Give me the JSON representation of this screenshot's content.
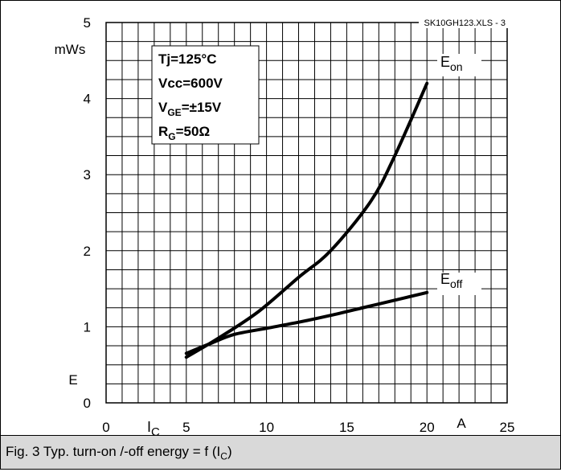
{
  "chart_data": {
    "type": "line",
    "source_label": "SK10GH123.XLS - 3",
    "xlabel": "I",
    "xlabel_sub": "C",
    "xunit": "A",
    "ylabel": "E",
    "yunit": "mWs",
    "xlim": [
      0,
      25
    ],
    "ylim": [
      0,
      5
    ],
    "x_ticks": [
      "0",
      "5",
      "10",
      "15",
      "20",
      "25"
    ],
    "y_ticks": [
      "0",
      "1",
      "2",
      "3",
      "4",
      "5"
    ],
    "grid": true,
    "conditions": [
      {
        "main": "Tj=125°C",
        "sub": "",
        "tail": ""
      },
      {
        "main": "Vcc=600V",
        "sub": "",
        "tail": ""
      },
      {
        "main": "V",
        "sub": "GE",
        "tail": "=±15V"
      },
      {
        "main": "R",
        "sub": "G",
        "tail": "=50Ω"
      }
    ],
    "series": [
      {
        "name": "E",
        "name_sub": "on",
        "x": [
          5,
          7,
          9.5,
          12,
          14,
          16.5,
          18,
          20
        ],
        "y": [
          0.6,
          0.85,
          1.2,
          1.65,
          2.0,
          2.65,
          3.25,
          4.2
        ]
      },
      {
        "name": "E",
        "name_sub": "off",
        "x": [
          5,
          6.5,
          8,
          10,
          12,
          14,
          16,
          18,
          20
        ],
        "y": [
          0.65,
          0.78,
          0.9,
          0.98,
          1.06,
          1.15,
          1.25,
          1.35,
          1.45
        ]
      }
    ]
  },
  "caption": {
    "text": "Fig. 3 Typ. turn-on /-off energy = f (I",
    "sub": "C",
    "close": ")"
  }
}
